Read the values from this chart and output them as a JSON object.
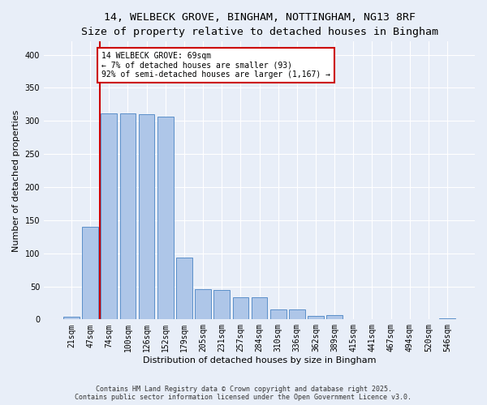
{
  "title_line1": "14, WELBECK GROVE, BINGHAM, NOTTINGHAM, NG13 8RF",
  "title_line2": "Size of property relative to detached houses in Bingham",
  "xlabel": "Distribution of detached houses by size in Bingham",
  "ylabel": "Number of detached properties",
  "bar_labels": [
    "21sqm",
    "47sqm",
    "74sqm",
    "100sqm",
    "126sqm",
    "152sqm",
    "179sqm",
    "205sqm",
    "231sqm",
    "257sqm",
    "284sqm",
    "310sqm",
    "336sqm",
    "362sqm",
    "389sqm",
    "415sqm",
    "441sqm",
    "467sqm",
    "494sqm",
    "520sqm",
    "546sqm"
  ],
  "bar_values": [
    4,
    140,
    311,
    311,
    310,
    307,
    94,
    46,
    45,
    33,
    33,
    15,
    15,
    5,
    6,
    1,
    1,
    1,
    0,
    0,
    2
  ],
  "bar_color": "#aec6e8",
  "bar_edge_color": "#5b8fc9",
  "ylim": [
    0,
    420
  ],
  "yticks": [
    0,
    50,
    100,
    150,
    200,
    250,
    300,
    350,
    400
  ],
  "vline_color": "#cc0000",
  "annotation_text": "14 WELBECK GROVE: 69sqm\n← 7% of detached houses are smaller (93)\n92% of semi-detached houses are larger (1,167) →",
  "annotation_box_color": "#ffffff",
  "annotation_box_edge": "#cc0000",
  "footer_line1": "Contains HM Land Registry data © Crown copyright and database right 2025.",
  "footer_line2": "Contains public sector information licensed under the Open Government Licence v3.0.",
  "bg_color": "#e8eef8",
  "plot_bg_color": "#e8eef8",
  "grid_color": "#ffffff",
  "title_fontsize": 9.5,
  "subtitle_fontsize": 8.5,
  "tick_fontsize": 7,
  "label_fontsize": 8,
  "footer_fontsize": 6
}
